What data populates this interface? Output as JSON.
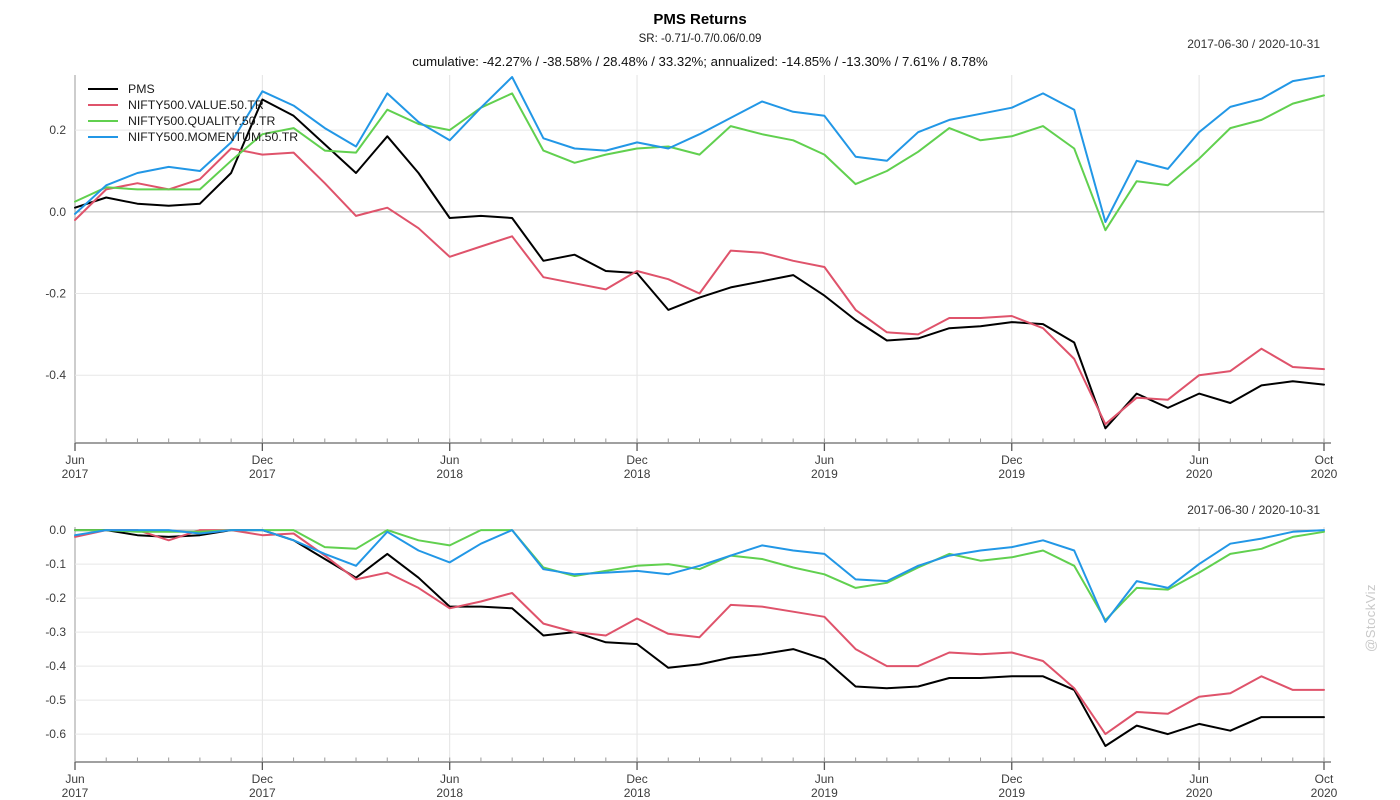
{
  "header": {
    "title": "PMS Returns",
    "subtitle": "SR: -0.71/-0.7/0.06/0.09",
    "cumulative_line": "cumulative: -42.27% / -38.58% / 28.48% / 33.32%; annualized: -14.85% / -13.30% / 7.61% / 8.78%",
    "date_range_top": "2017-06-30 / 2020-10-31",
    "date_range_bottom": "2017-06-30 / 2020-10-31"
  },
  "watermark": "@StockViz",
  "colors": {
    "pms": "#000000",
    "value": "#DF536B",
    "quality": "#61D04F",
    "momentum": "#2297E6",
    "gridline": "#e7e7e7",
    "zero_line": "#b4b4b4",
    "axis_line": "#808080",
    "tick_label": "#3d3d3d",
    "watermark": "#c9c9c9"
  },
  "chart_data": [
    {
      "type": "line",
      "panel": "cumulative-returns",
      "title": "PMS Returns",
      "date_range": "2017-06-30 / 2020-10-31",
      "grid": true,
      "legend_position": "top-left",
      "ylim": [
        -0.566,
        0.335
      ],
      "yticks": [
        {
          "label": "0.2",
          "value": 0.2
        },
        {
          "label": "0.0",
          "value": 0.0
        },
        {
          "label": "-0.2",
          "value": -0.2
        },
        {
          "label": "-0.4",
          "value": -0.4
        }
      ],
      "x": [
        "Jun 2017",
        "Jul 2017",
        "Aug 2017",
        "Sep 2017",
        "Oct 2017",
        "Nov 2017",
        "Dec 2017",
        "Jan 2018",
        "Feb 2018",
        "Mar 2018",
        "Apr 2018",
        "May 2018",
        "Jun 2018",
        "Jul 2018",
        "Aug 2018",
        "Sep 2018",
        "Oct 2018",
        "Nov 2018",
        "Dec 2018",
        "Jan 2019",
        "Feb 2019",
        "Mar 2019",
        "Apr 2019",
        "May 2019",
        "Jun 2019",
        "Jul 2019",
        "Aug 2019",
        "Sep 2019",
        "Oct 2019",
        "Nov 2019",
        "Dec 2019",
        "Jan 2020",
        "Feb 2020",
        "Mar 2020",
        "Apr 2020",
        "May 2020",
        "Jun 2020",
        "Jul 2020",
        "Aug 2020",
        "Sep 2020",
        "Oct 2020"
      ],
      "x_ticks": [
        {
          "index": 0,
          "month": "Jun",
          "year": "2017"
        },
        {
          "index": 6,
          "month": "Dec",
          "year": "2017"
        },
        {
          "index": 12,
          "month": "Jun",
          "year": "2018"
        },
        {
          "index": 18,
          "month": "Dec",
          "year": "2018"
        },
        {
          "index": 24,
          "month": "Jun",
          "year": "2019"
        },
        {
          "index": 30,
          "month": "Dec",
          "year": "2019"
        },
        {
          "index": 36,
          "month": "Jun",
          "year": "2020"
        },
        {
          "index": 40,
          "month": "Oct",
          "year": "2020"
        }
      ],
      "series": [
        {
          "name": "PMS",
          "color": "#000000",
          "values": [
            0.01,
            0.035,
            0.02,
            0.015,
            0.02,
            0.095,
            0.275,
            0.235,
            0.165,
            0.095,
            0.185,
            0.095,
            -0.015,
            -0.01,
            -0.015,
            -0.12,
            -0.105,
            -0.145,
            -0.15,
            -0.24,
            -0.21,
            -0.185,
            -0.17,
            -0.155,
            -0.205,
            -0.265,
            -0.315,
            -0.31,
            -0.285,
            -0.28,
            -0.27,
            -0.275,
            -0.32,
            -0.53,
            -0.445,
            -0.48,
            -0.445,
            -0.468,
            -0.425,
            -0.415,
            -0.423
          ]
        },
        {
          "name": "NIFTY500.VALUE.50.TR",
          "color": "#DF536B",
          "values": [
            -0.02,
            0.055,
            0.07,
            0.055,
            0.08,
            0.155,
            0.14,
            0.145,
            0.07,
            -0.01,
            0.01,
            -0.04,
            -0.11,
            -0.085,
            -0.06,
            -0.16,
            -0.175,
            -0.19,
            -0.145,
            -0.165,
            -0.2,
            -0.095,
            -0.1,
            -0.12,
            -0.135,
            -0.24,
            -0.295,
            -0.3,
            -0.26,
            -0.26,
            -0.255,
            -0.285,
            -0.36,
            -0.52,
            -0.455,
            -0.46,
            -0.4,
            -0.39,
            -0.335,
            -0.38,
            -0.385
          ]
        },
        {
          "name": "NIFTY500.QUALITY.50.TR",
          "color": "#61D04F",
          "values": [
            0.025,
            0.06,
            0.055,
            0.055,
            0.055,
            0.125,
            0.19,
            0.205,
            0.15,
            0.145,
            0.25,
            0.215,
            0.2,
            0.255,
            0.29,
            0.15,
            0.12,
            0.14,
            0.155,
            0.16,
            0.14,
            0.21,
            0.19,
            0.175,
            0.14,
            0.068,
            0.1,
            0.147,
            0.205,
            0.175,
            0.185,
            0.21,
            0.155,
            -0.045,
            0.075,
            0.065,
            0.13,
            0.205,
            0.225,
            0.265,
            0.285
          ]
        },
        {
          "name": "NIFTY500.MOMENTUM.50.TR",
          "color": "#2297E6",
          "values": [
            -0.005,
            0.065,
            0.095,
            0.11,
            0.1,
            0.17,
            0.295,
            0.26,
            0.205,
            0.16,
            0.29,
            0.22,
            0.175,
            0.255,
            0.33,
            0.18,
            0.155,
            0.15,
            0.17,
            0.155,
            0.19,
            0.23,
            0.27,
            0.245,
            0.235,
            0.135,
            0.125,
            0.195,
            0.225,
            0.24,
            0.255,
            0.29,
            0.25,
            -0.025,
            0.125,
            0.105,
            0.195,
            0.257,
            0.277,
            0.32,
            0.333
          ]
        }
      ]
    },
    {
      "type": "line",
      "panel": "drawdowns",
      "date_range": "2017-06-30 / 2020-10-31",
      "grid": true,
      "ylim": [
        -0.682,
        0.009
      ],
      "yticks": [
        {
          "label": "0.0",
          "value": 0.0
        },
        {
          "label": "-0.1",
          "value": -0.1
        },
        {
          "label": "-0.2",
          "value": -0.2
        },
        {
          "label": "-0.3",
          "value": -0.3
        },
        {
          "label": "-0.4",
          "value": -0.4
        },
        {
          "label": "-0.5",
          "value": -0.5
        },
        {
          "label": "-0.6",
          "value": -0.6
        }
      ],
      "x": [
        "Jun 2017",
        "Jul 2017",
        "Aug 2017",
        "Sep 2017",
        "Oct 2017",
        "Nov 2017",
        "Dec 2017",
        "Jan 2018",
        "Feb 2018",
        "Mar 2018",
        "Apr 2018",
        "May 2018",
        "Jun 2018",
        "Jul 2018",
        "Aug 2018",
        "Sep 2018",
        "Oct 2018",
        "Nov 2018",
        "Dec 2018",
        "Jan 2019",
        "Feb 2019",
        "Mar 2019",
        "Apr 2019",
        "May 2019",
        "Jun 2019",
        "Jul 2019",
        "Aug 2019",
        "Sep 2019",
        "Oct 2019",
        "Nov 2019",
        "Dec 2019",
        "Jan 2020",
        "Feb 2020",
        "Mar 2020",
        "Apr 2020",
        "May 2020",
        "Jun 2020",
        "Jul 2020",
        "Aug 2020",
        "Sep 2020",
        "Oct 2020"
      ],
      "x_ticks": [
        {
          "index": 0,
          "month": "Jun",
          "year": "2017"
        },
        {
          "index": 6,
          "month": "Dec",
          "year": "2017"
        },
        {
          "index": 12,
          "month": "Jun",
          "year": "2018"
        },
        {
          "index": 18,
          "month": "Dec",
          "year": "2018"
        },
        {
          "index": 24,
          "month": "Jun",
          "year": "2019"
        },
        {
          "index": 30,
          "month": "Dec",
          "year": "2019"
        },
        {
          "index": 36,
          "month": "Jun",
          "year": "2020"
        },
        {
          "index": 40,
          "month": "Oct",
          "year": "2020"
        }
      ],
      "series": [
        {
          "name": "PMS",
          "color": "#000000",
          "values": [
            0,
            0,
            -0.015,
            -0.02,
            -0.015,
            0,
            0,
            -0.03,
            -0.085,
            -0.14,
            -0.07,
            -0.14,
            -0.225,
            -0.225,
            -0.23,
            -0.31,
            -0.3,
            -0.33,
            -0.335,
            -0.405,
            -0.395,
            -0.375,
            -0.365,
            -0.35,
            -0.38,
            -0.46,
            -0.465,
            -0.46,
            -0.435,
            -0.435,
            -0.43,
            -0.43,
            -0.47,
            -0.635,
            -0.575,
            -0.6,
            -0.57,
            -0.59,
            -0.55,
            -0.55,
            -0.55
          ]
        },
        {
          "name": "NIFTY500.VALUE.50.TR",
          "color": "#DF536B",
          "values": [
            -0.02,
            0,
            0,
            -0.03,
            0,
            0,
            -0.015,
            -0.01,
            -0.075,
            -0.145,
            -0.125,
            -0.17,
            -0.23,
            -0.21,
            -0.185,
            -0.275,
            -0.3,
            -0.31,
            -0.26,
            -0.305,
            -0.315,
            -0.22,
            -0.225,
            -0.24,
            -0.255,
            -0.35,
            -0.4,
            -0.4,
            -0.36,
            -0.365,
            -0.36,
            -0.385,
            -0.465,
            -0.6,
            -0.535,
            -0.54,
            -0.49,
            -0.48,
            -0.43,
            -0.47,
            -0.47
          ]
        },
        {
          "name": "NIFTY500.QUALITY.50.TR",
          "color": "#61D04F",
          "values": [
            0,
            0,
            -0.005,
            -0.005,
            -0.005,
            0,
            0,
            0,
            -0.05,
            -0.055,
            0,
            -0.03,
            -0.045,
            0,
            0,
            -0.11,
            -0.135,
            -0.12,
            -0.105,
            -0.1,
            -0.115,
            -0.075,
            -0.085,
            -0.11,
            -0.13,
            -0.17,
            -0.155,
            -0.11,
            -0.07,
            -0.09,
            -0.08,
            -0.06,
            -0.105,
            -0.265,
            -0.17,
            -0.175,
            -0.125,
            -0.07,
            -0.055,
            -0.02,
            -0.005
          ]
        },
        {
          "name": "NIFTY500.MOMENTUM.50.TR",
          "color": "#2297E6",
          "values": [
            -0.015,
            0,
            0,
            0,
            -0.01,
            0,
            0,
            -0.03,
            -0.07,
            -0.105,
            -0.005,
            -0.06,
            -0.095,
            -0.04,
            0,
            -0.115,
            -0.13,
            -0.125,
            -0.12,
            -0.13,
            -0.105,
            -0.075,
            -0.045,
            -0.06,
            -0.07,
            -0.145,
            -0.15,
            -0.105,
            -0.075,
            -0.06,
            -0.05,
            -0.03,
            -0.06,
            -0.27,
            -0.15,
            -0.17,
            -0.1,
            -0.04,
            -0.025,
            -0.005,
            0
          ]
        }
      ]
    }
  ]
}
